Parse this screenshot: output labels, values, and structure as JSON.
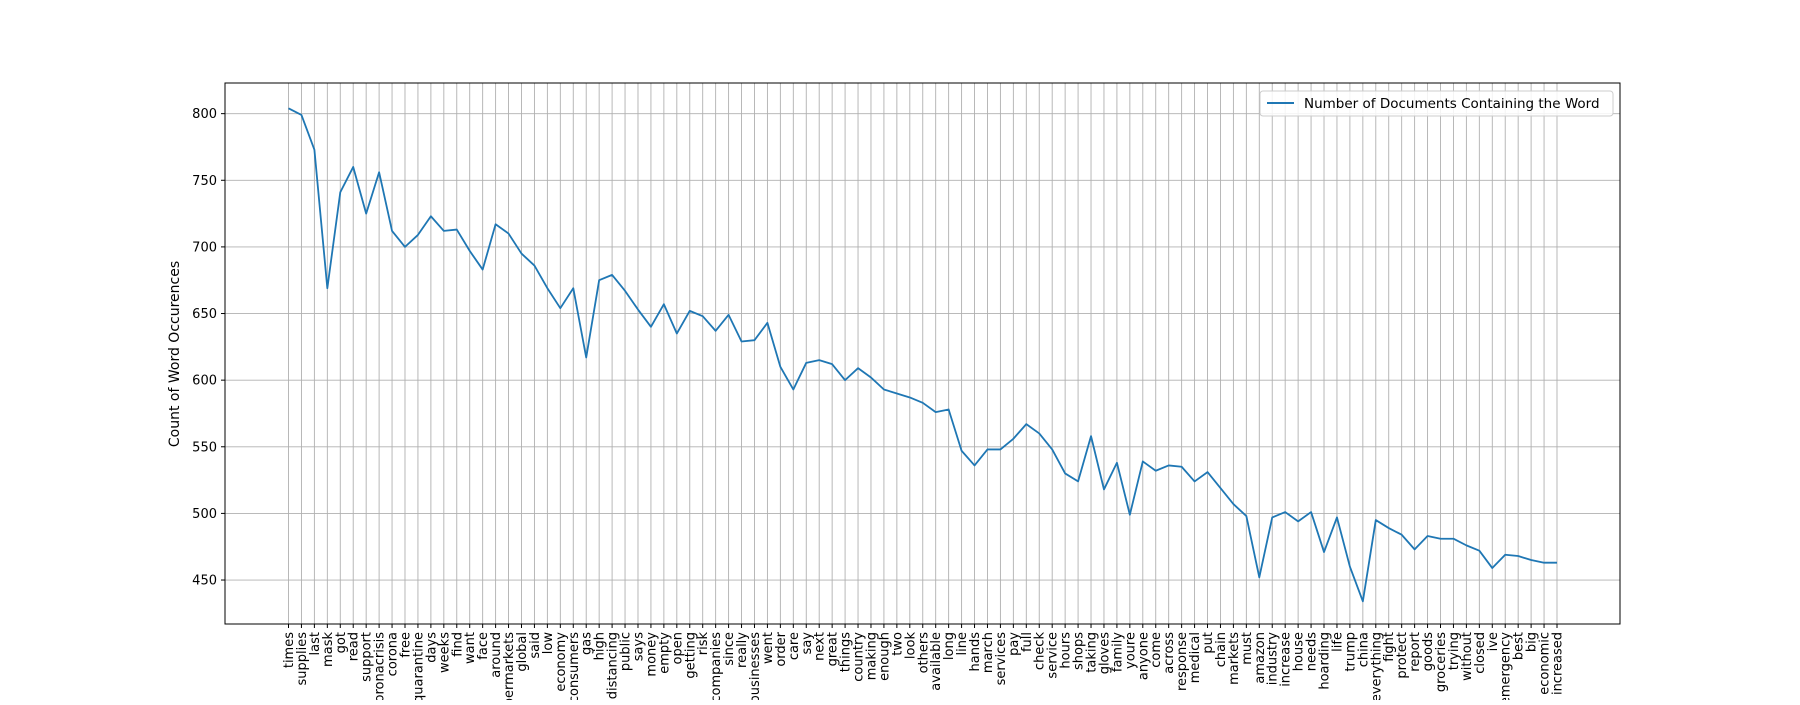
{
  "chart_data": {
    "type": "line",
    "title": "",
    "xlabel": "",
    "ylabel": "Count of Word Occurences",
    "ylim": [
      417,
      823
    ],
    "yticks": [
      450,
      500,
      550,
      600,
      650,
      700,
      750,
      800
    ],
    "grid": true,
    "legend_position": "top-right",
    "series": [
      {
        "name": "Number of Documents Containing the Word",
        "color": "#1f77b4",
        "values": [
          804,
          799,
          773,
          669,
          741,
          760,
          725,
          756,
          712,
          700,
          709,
          723,
          712,
          713,
          697,
          683,
          717,
          710,
          695,
          686,
          669,
          654,
          669,
          617,
          675,
          679,
          667,
          653,
          640,
          657,
          635,
          652,
          648,
          637,
          649,
          629,
          630,
          643,
          610,
          593,
          613,
          615,
          612,
          600,
          609,
          602,
          593,
          590,
          587,
          583,
          576,
          578,
          547,
          536,
          548,
          548,
          556,
          567,
          560,
          548,
          530,
          524,
          558,
          518,
          538,
          499,
          539,
          532,
          536,
          535,
          524,
          531,
          519,
          507,
          498,
          452,
          497,
          501,
          494,
          501,
          471,
          497,
          460,
          434,
          495,
          489,
          484,
          473,
          483,
          481,
          481,
          476,
          472,
          459,
          469,
          468,
          465,
          463,
          463
        ]
      }
    ],
    "categories": [
      "times",
      "supplies",
      "last",
      "mask",
      "got",
      "read",
      "support",
      "coronacrisis",
      "corona",
      "free",
      "quarantine",
      "days",
      "weeks",
      "find",
      "want",
      "face",
      "around",
      "supermarkets",
      "global",
      "said",
      "low",
      "economy",
      "consumers",
      "gas",
      "high",
      "distancing",
      "public",
      "says",
      "money",
      "empty",
      "open",
      "getting",
      "risk",
      "companies",
      "since",
      "really",
      "businesses",
      "went",
      "order",
      "care",
      "say",
      "next",
      "great",
      "things",
      "country",
      "making",
      "enough",
      "two",
      "look",
      "others",
      "available",
      "long",
      "line",
      "hands",
      "march",
      "services",
      "pay",
      "full",
      "check",
      "service",
      "hours",
      "shops",
      "taking",
      "gloves",
      "family",
      "youre",
      "anyone",
      "come",
      "across",
      "response",
      "medical",
      "put",
      "chain",
      "markets",
      "must",
      "amazon",
      "industry",
      "increase",
      "house",
      "needs",
      "hoarding",
      "life",
      "trump",
      "china",
      "everything",
      "fight",
      "protect",
      "report",
      "goods",
      "groceries",
      "trying",
      "without",
      "closed",
      "ive",
      "emergency",
      "best",
      "big",
      "economic",
      "increased"
    ]
  }
}
